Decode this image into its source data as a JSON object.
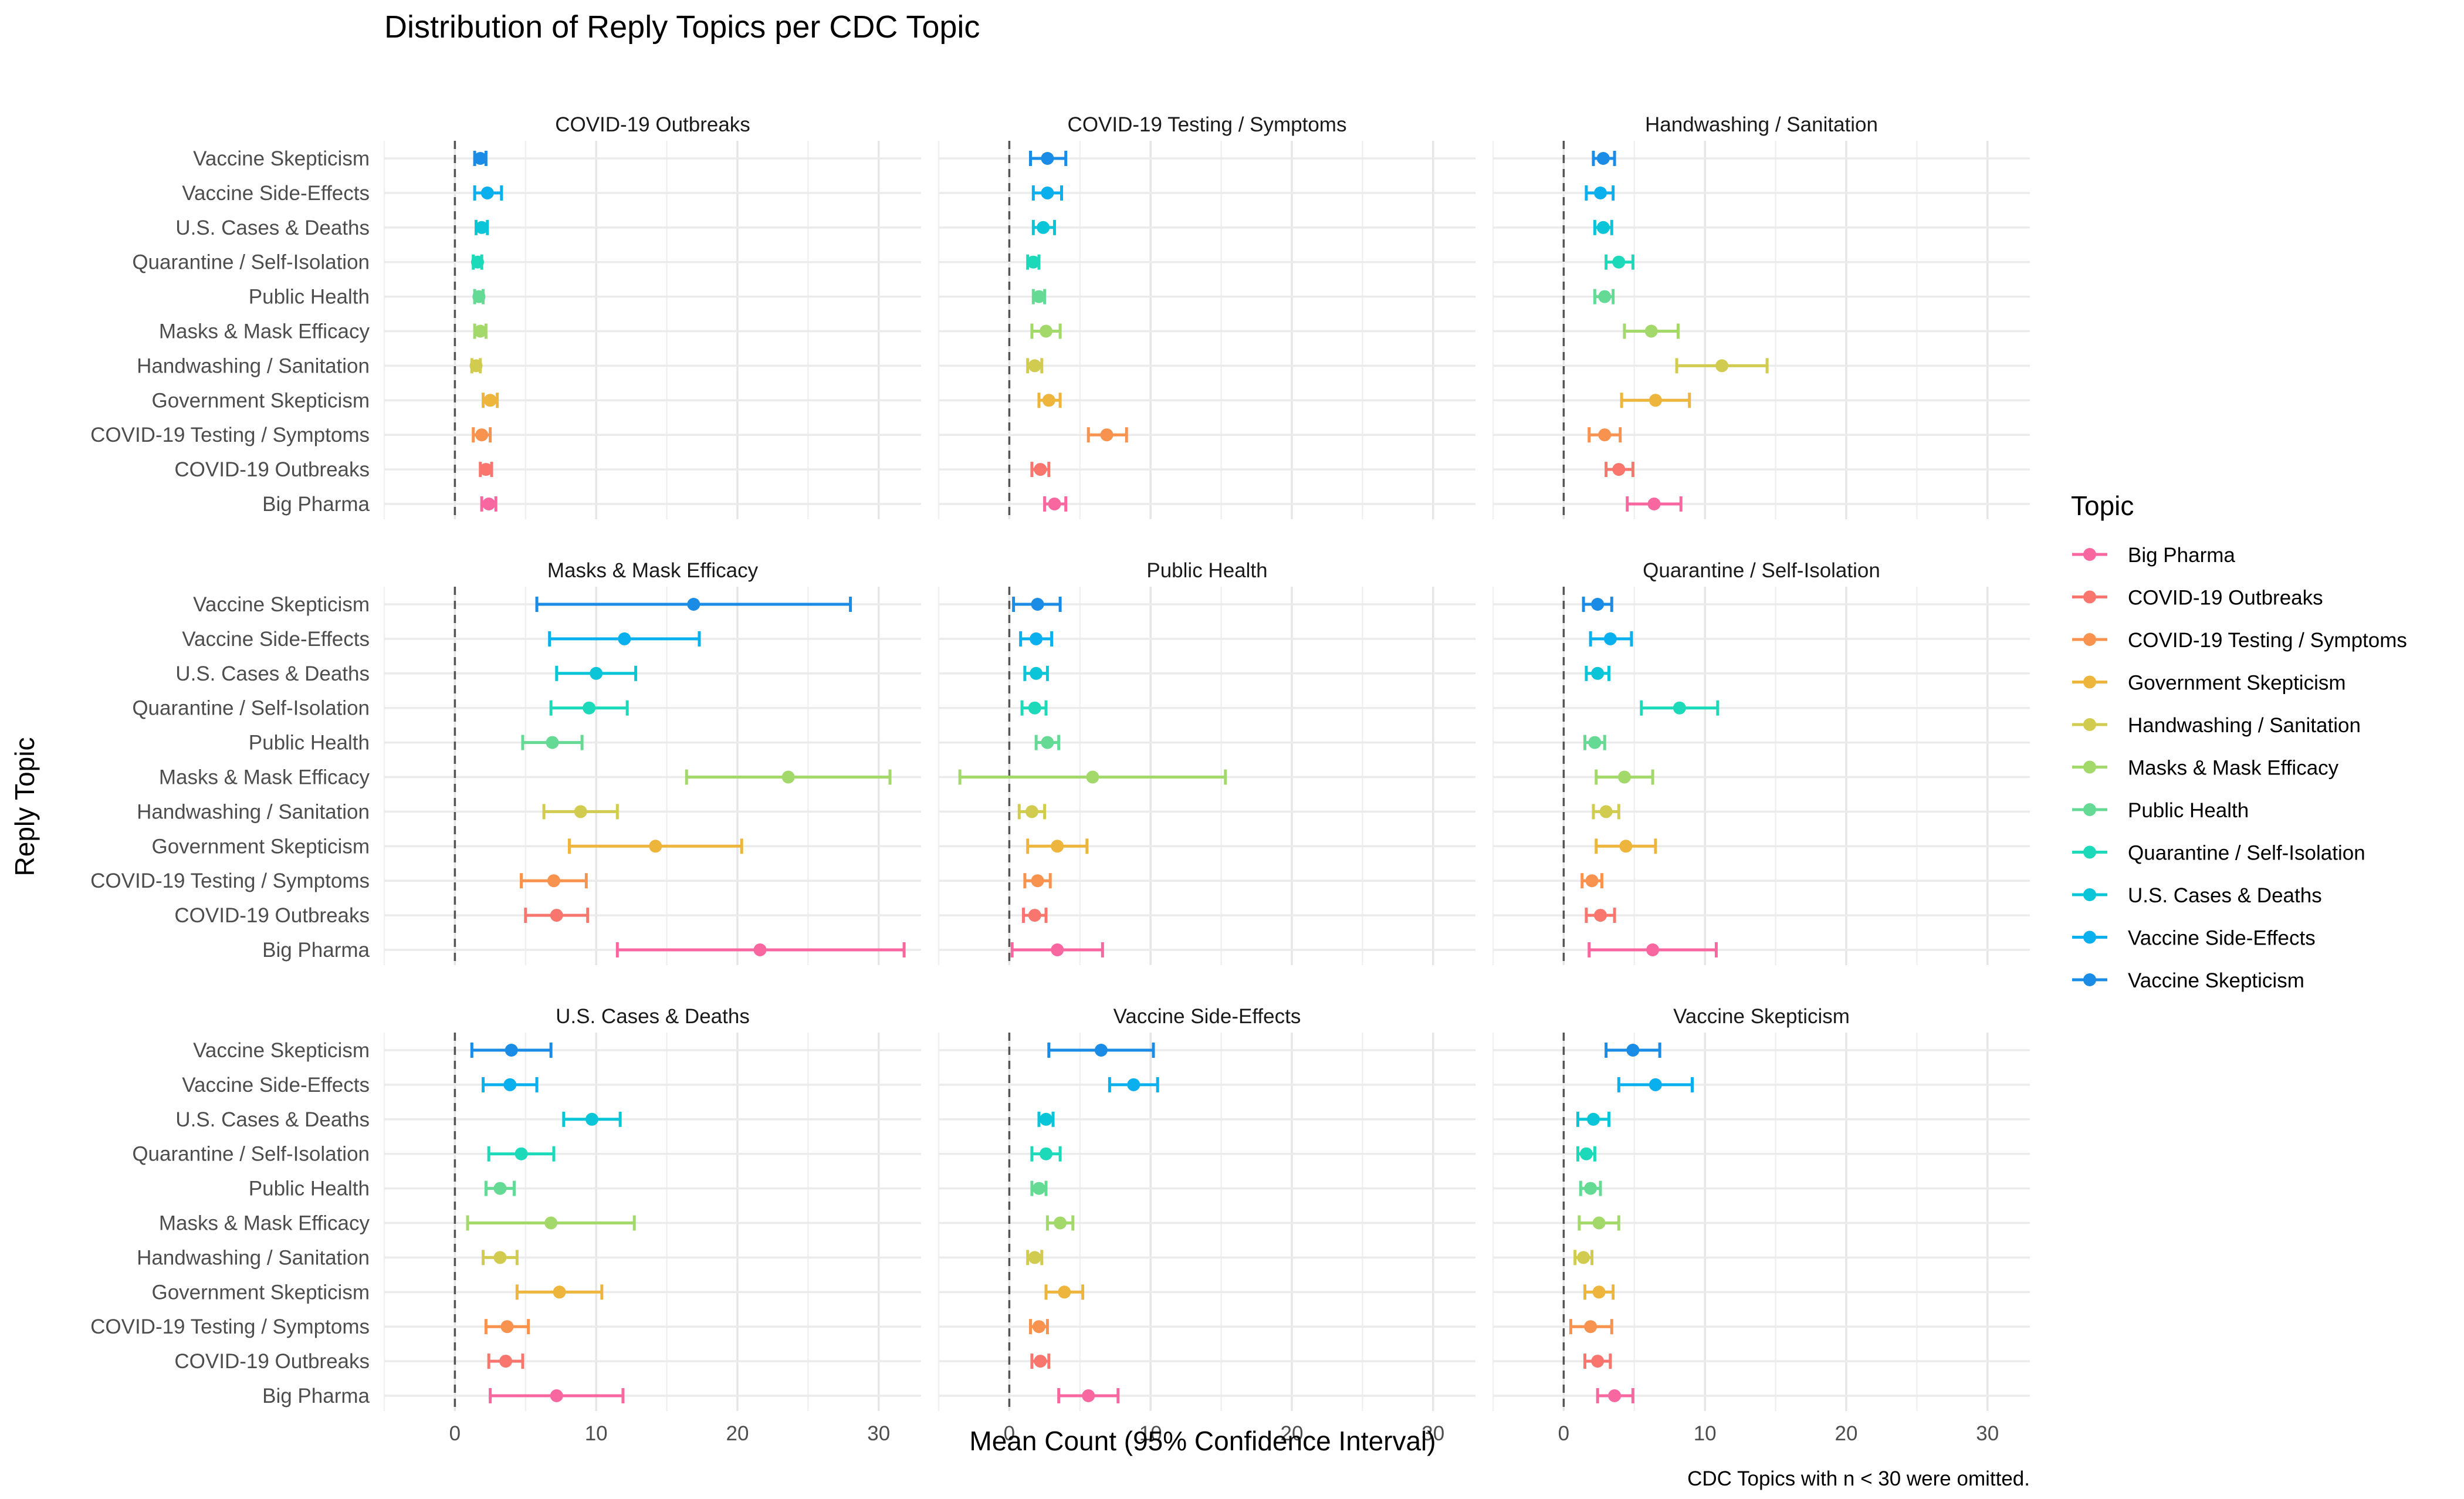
{
  "title": "Distribution of Reply Topics per CDC Topic",
  "xlabel": "Mean Count (95% Confidence Interval)",
  "ylabel": "Reply Topic",
  "caption": "CDC Topics with n < 30 were omitted.",
  "legend": {
    "title": "Topic",
    "items": [
      {
        "label": "Big Pharma",
        "color": "#F8766D"
      },
      {
        "label": "COVID-19 Outbreaks",
        "color": "#F8766D"
      },
      {
        "label": "COVID-19 Testing / Symptoms",
        "color": "#F8766D"
      },
      {
        "label": "Government Skepticism",
        "color": "#F8766D"
      },
      {
        "label": "Handwashing / Sanitation",
        "color": "#F8766D"
      },
      {
        "label": "Masks & Mask Efficacy",
        "color": "#F8766D"
      },
      {
        "label": "Public Health",
        "color": "#F8766D"
      },
      {
        "label": "Quarantine / Self-Isolation",
        "color": "#F8766D"
      },
      {
        "label": "U.S. Cases & Deaths",
        "color": "#F8766D"
      },
      {
        "label": "Vaccine Side-Effects",
        "color": "#F8766D"
      },
      {
        "label": "Vaccine Skepticism",
        "color": "#F8766D"
      }
    ]
  },
  "colors": {
    "Big Pharma": "#F8679F",
    "COVID-19 Outbreaks": "#F8766D",
    "COVID-19 Testing / Symptoms": "#F8924F",
    "Government Skepticism": "#EDB53C",
    "Handwashing / Sanitation": "#D1CB50",
    "Masks & Mask Efficacy": "#A3D96A",
    "Public Health": "#65DA94",
    "Quarantine / Self-Isolation": "#1CD9BA",
    "U.S. Cases & Deaths": "#0AC5D8",
    "Vaccine Side-Effects": "#0AAFEE",
    "Vaccine Skepticism": "#1A8CE6"
  },
  "chart_data": {
    "type": "errorbar",
    "xlim": [
      -5,
      33
    ],
    "xticks": [
      0,
      10,
      20,
      30
    ],
    "reference_line_x": 0,
    "grid": true,
    "facet_layout": [
      3,
      3
    ],
    "legend_position": "right",
    "categories": [
      "Vaccine Skepticism",
      "Vaccine Side-Effects",
      "U.S. Cases & Deaths",
      "Quarantine / Self-Isolation",
      "Public Health",
      "Masks & Mask Efficacy",
      "Handwashing / Sanitation",
      "Government Skepticism",
      "COVID-19 Testing / Symptoms",
      "COVID-19 Outbreaks",
      "Big Pharma"
    ],
    "facets": [
      {
        "title": "COVID-19 Outbreaks",
        "points": [
          {
            "topic": "Vaccine Skepticism",
            "mean": 1.8,
            "low": 1.4,
            "high": 2.2
          },
          {
            "topic": "Vaccine Side-Effects",
            "mean": 2.3,
            "low": 1.4,
            "high": 3.3
          },
          {
            "topic": "U.S. Cases & Deaths",
            "mean": 1.9,
            "low": 1.5,
            "high": 2.3
          },
          {
            "topic": "Quarantine / Self-Isolation",
            "mean": 1.6,
            "low": 1.3,
            "high": 1.9
          },
          {
            "topic": "Public Health",
            "mean": 1.7,
            "low": 1.4,
            "high": 2.0
          },
          {
            "topic": "Masks & Mask Efficacy",
            "mean": 1.8,
            "low": 1.4,
            "high": 2.2
          },
          {
            "topic": "Handwashing / Sanitation",
            "mean": 1.5,
            "low": 1.2,
            "high": 1.8
          },
          {
            "topic": "Government Skepticism",
            "mean": 2.5,
            "low": 2.0,
            "high": 3.0
          },
          {
            "topic": "COVID-19 Testing / Symptoms",
            "mean": 1.9,
            "low": 1.3,
            "high": 2.5
          },
          {
            "topic": "COVID-19 Outbreaks",
            "mean": 2.2,
            "low": 1.8,
            "high": 2.6
          },
          {
            "topic": "Big Pharma",
            "mean": 2.4,
            "low": 1.9,
            "high": 2.9
          }
        ]
      },
      {
        "title": "COVID-19 Testing / Symptoms",
        "points": [
          {
            "topic": "Vaccine Skepticism",
            "mean": 2.7,
            "low": 1.5,
            "high": 4.0
          },
          {
            "topic": "Vaccine Side-Effects",
            "mean": 2.7,
            "low": 1.7,
            "high": 3.7
          },
          {
            "topic": "U.S. Cases & Deaths",
            "mean": 2.4,
            "low": 1.7,
            "high": 3.2
          },
          {
            "topic": "Quarantine / Self-Isolation",
            "mean": 1.7,
            "low": 1.3,
            "high": 2.1
          },
          {
            "topic": "Public Health",
            "mean": 2.1,
            "low": 1.7,
            "high": 2.5
          },
          {
            "topic": "Masks & Mask Efficacy",
            "mean": 2.6,
            "low": 1.6,
            "high": 3.6
          },
          {
            "topic": "Handwashing / Sanitation",
            "mean": 1.8,
            "low": 1.3,
            "high": 2.3
          },
          {
            "topic": "Government Skepticism",
            "mean": 2.8,
            "low": 2.1,
            "high": 3.6
          },
          {
            "topic": "COVID-19 Testing / Symptoms",
            "mean": 6.9,
            "low": 5.6,
            "high": 8.3
          },
          {
            "topic": "COVID-19 Outbreaks",
            "mean": 2.2,
            "low": 1.6,
            "high": 2.8
          },
          {
            "topic": "Big Pharma",
            "mean": 3.2,
            "low": 2.5,
            "high": 4.0
          }
        ]
      },
      {
        "title": "Handwashing / Sanitation",
        "points": [
          {
            "topic": "Vaccine Skepticism",
            "mean": 2.8,
            "low": 2.1,
            "high": 3.6
          },
          {
            "topic": "Vaccine Side-Effects",
            "mean": 2.6,
            "low": 1.6,
            "high": 3.5
          },
          {
            "topic": "U.S. Cases & Deaths",
            "mean": 2.8,
            "low": 2.2,
            "high": 3.4
          },
          {
            "topic": "Quarantine / Self-Isolation",
            "mean": 3.9,
            "low": 3.0,
            "high": 4.9
          },
          {
            "topic": "Public Health",
            "mean": 2.9,
            "low": 2.2,
            "high": 3.5
          },
          {
            "topic": "Masks & Mask Efficacy",
            "mean": 6.2,
            "low": 4.3,
            "high": 8.1
          },
          {
            "topic": "Handwashing / Sanitation",
            "mean": 11.2,
            "low": 8.0,
            "high": 14.4
          },
          {
            "topic": "Government Skepticism",
            "mean": 6.5,
            "low": 4.1,
            "high": 8.9
          },
          {
            "topic": "COVID-19 Testing / Symptoms",
            "mean": 2.9,
            "low": 1.8,
            "high": 4.0
          },
          {
            "topic": "COVID-19 Outbreaks",
            "mean": 3.9,
            "low": 3.0,
            "high": 4.9
          },
          {
            "topic": "Big Pharma",
            "mean": 6.4,
            "low": 4.5,
            "high": 8.3
          }
        ]
      },
      {
        "title": "Masks & Mask Efficacy",
        "points": [
          {
            "topic": "Vaccine Skepticism",
            "mean": 16.9,
            "low": 5.8,
            "high": 28.0
          },
          {
            "topic": "Vaccine Side-Effects",
            "mean": 12.0,
            "low": 6.7,
            "high": 17.3
          },
          {
            "topic": "U.S. Cases & Deaths",
            "mean": 10.0,
            "low": 7.2,
            "high": 12.8
          },
          {
            "topic": "Quarantine / Self-Isolation",
            "mean": 9.5,
            "low": 6.8,
            "high": 12.2
          },
          {
            "topic": "Public Health",
            "mean": 6.9,
            "low": 4.8,
            "high": 9.0
          },
          {
            "topic": "Masks & Mask Efficacy",
            "mean": 23.6,
            "low": 16.4,
            "high": 30.8
          },
          {
            "topic": "Handwashing / Sanitation",
            "mean": 8.9,
            "low": 6.3,
            "high": 11.5
          },
          {
            "topic": "Government Skepticism",
            "mean": 14.2,
            "low": 8.1,
            "high": 20.3
          },
          {
            "topic": "COVID-19 Testing / Symptoms",
            "mean": 7.0,
            "low": 4.7,
            "high": 9.3
          },
          {
            "topic": "COVID-19 Outbreaks",
            "mean": 7.2,
            "low": 5.0,
            "high": 9.4
          },
          {
            "topic": "Big Pharma",
            "mean": 21.6,
            "low": 11.5,
            "high": 31.8
          }
        ]
      },
      {
        "title": "Public Health",
        "points": [
          {
            "topic": "Vaccine Skepticism",
            "mean": 2.0,
            "low": 0.3,
            "high": 3.6
          },
          {
            "topic": "Vaccine Side-Effects",
            "mean": 1.9,
            "low": 0.8,
            "high": 3.0
          },
          {
            "topic": "U.S. Cases & Deaths",
            "mean": 1.9,
            "low": 1.1,
            "high": 2.7
          },
          {
            "topic": "Quarantine / Self-Isolation",
            "mean": 1.8,
            "low": 0.9,
            "high": 2.6
          },
          {
            "topic": "Public Health",
            "mean": 2.7,
            "low": 1.9,
            "high": 3.5
          },
          {
            "topic": "Masks & Mask Efficacy",
            "mean": 5.9,
            "low": -3.5,
            "high": 15.3
          },
          {
            "topic": "Handwashing / Sanitation",
            "mean": 1.6,
            "low": 0.7,
            "high": 2.5
          },
          {
            "topic": "Government Skepticism",
            "mean": 3.4,
            "low": 1.3,
            "high": 5.5
          },
          {
            "topic": "COVID-19 Testing / Symptoms",
            "mean": 2.0,
            "low": 1.1,
            "high": 2.9
          },
          {
            "topic": "COVID-19 Outbreaks",
            "mean": 1.8,
            "low": 1.0,
            "high": 2.6
          },
          {
            "topic": "Big Pharma",
            "mean": 3.4,
            "low": 0.2,
            "high": 6.6
          }
        ]
      },
      {
        "title": "Quarantine / Self-Isolation",
        "points": [
          {
            "topic": "Vaccine Skepticism",
            "mean": 2.4,
            "low": 1.4,
            "high": 3.4
          },
          {
            "topic": "Vaccine Side-Effects",
            "mean": 3.3,
            "low": 1.9,
            "high": 4.8
          },
          {
            "topic": "U.S. Cases & Deaths",
            "mean": 2.4,
            "low": 1.6,
            "high": 3.2
          },
          {
            "topic": "Quarantine / Self-Isolation",
            "mean": 8.2,
            "low": 5.5,
            "high": 10.9
          },
          {
            "topic": "Public Health",
            "mean": 2.2,
            "low": 1.5,
            "high": 2.9
          },
          {
            "topic": "Masks & Mask Efficacy",
            "mean": 4.3,
            "low": 2.3,
            "high": 6.3
          },
          {
            "topic": "Handwashing / Sanitation",
            "mean": 3.0,
            "low": 2.1,
            "high": 3.9
          },
          {
            "topic": "Government Skepticism",
            "mean": 4.4,
            "low": 2.3,
            "high": 6.5
          },
          {
            "topic": "COVID-19 Testing / Symptoms",
            "mean": 2.0,
            "low": 1.3,
            "high": 2.7
          },
          {
            "topic": "COVID-19 Outbreaks",
            "mean": 2.6,
            "low": 1.6,
            "high": 3.6
          },
          {
            "topic": "Big Pharma",
            "mean": 6.3,
            "low": 1.8,
            "high": 10.8
          }
        ]
      },
      {
        "title": "U.S. Cases & Deaths",
        "points": [
          {
            "topic": "Vaccine Skepticism",
            "mean": 4.0,
            "low": 1.2,
            "high": 6.8
          },
          {
            "topic": "Vaccine Side-Effects",
            "mean": 3.9,
            "low": 2.0,
            "high": 5.8
          },
          {
            "topic": "U.S. Cases & Deaths",
            "mean": 9.7,
            "low": 7.7,
            "high": 11.7
          },
          {
            "topic": "Quarantine / Self-Isolation",
            "mean": 4.7,
            "low": 2.4,
            "high": 7.0
          },
          {
            "topic": "Public Health",
            "mean": 3.2,
            "low": 2.2,
            "high": 4.2
          },
          {
            "topic": "Masks & Mask Efficacy",
            "mean": 6.8,
            "low": 0.9,
            "high": 12.7
          },
          {
            "topic": "Handwashing / Sanitation",
            "mean": 3.2,
            "low": 2.0,
            "high": 4.4
          },
          {
            "topic": "Government Skepticism",
            "mean": 7.4,
            "low": 4.4,
            "high": 10.4
          },
          {
            "topic": "COVID-19 Testing / Symptoms",
            "mean": 3.7,
            "low": 2.2,
            "high": 5.2
          },
          {
            "topic": "COVID-19 Outbreaks",
            "mean": 3.6,
            "low": 2.4,
            "high": 4.8
          },
          {
            "topic": "Big Pharma",
            "mean": 7.2,
            "low": 2.5,
            "high": 11.9
          }
        ]
      },
      {
        "title": "Vaccine Side-Effects",
        "points": [
          {
            "topic": "Vaccine Skepticism",
            "mean": 6.5,
            "low": 2.8,
            "high": 10.2
          },
          {
            "topic": "Vaccine Side-Effects",
            "mean": 8.8,
            "low": 7.1,
            "high": 10.5
          },
          {
            "topic": "U.S. Cases & Deaths",
            "mean": 2.6,
            "low": 2.1,
            "high": 3.1
          },
          {
            "topic": "Quarantine / Self-Isolation",
            "mean": 2.6,
            "low": 1.6,
            "high": 3.6
          },
          {
            "topic": "Public Health",
            "mean": 2.1,
            "low": 1.6,
            "high": 2.6
          },
          {
            "topic": "Masks & Mask Efficacy",
            "mean": 3.6,
            "low": 2.7,
            "high": 4.5
          },
          {
            "topic": "Handwashing / Sanitation",
            "mean": 1.8,
            "low": 1.3,
            "high": 2.3
          },
          {
            "topic": "Government Skepticism",
            "mean": 3.9,
            "low": 2.6,
            "high": 5.2
          },
          {
            "topic": "COVID-19 Testing / Symptoms",
            "mean": 2.1,
            "low": 1.5,
            "high": 2.7
          },
          {
            "topic": "COVID-19 Outbreaks",
            "mean": 2.2,
            "low": 1.6,
            "high": 2.8
          },
          {
            "topic": "Big Pharma",
            "mean": 5.6,
            "low": 3.5,
            "high": 7.7
          }
        ]
      },
      {
        "title": "Vaccine Skepticism",
        "points": [
          {
            "topic": "Vaccine Skepticism",
            "mean": 4.9,
            "low": 3.0,
            "high": 6.8
          },
          {
            "topic": "Vaccine Side-Effects",
            "mean": 6.5,
            "low": 3.9,
            "high": 9.1
          },
          {
            "topic": "U.S. Cases & Deaths",
            "mean": 2.1,
            "low": 1.0,
            "high": 3.2
          },
          {
            "topic": "Quarantine / Self-Isolation",
            "mean": 1.6,
            "low": 1.0,
            "high": 2.2
          },
          {
            "topic": "Public Health",
            "mean": 1.9,
            "low": 1.2,
            "high": 2.6
          },
          {
            "topic": "Masks & Mask Efficacy",
            "mean": 2.5,
            "low": 1.1,
            "high": 3.9
          },
          {
            "topic": "Handwashing / Sanitation",
            "mean": 1.4,
            "low": 0.8,
            "high": 2.0
          },
          {
            "topic": "Government Skepticism",
            "mean": 2.5,
            "low": 1.5,
            "high": 3.5
          },
          {
            "topic": "COVID-19 Testing / Symptoms",
            "mean": 1.9,
            "low": 0.5,
            "high": 3.4
          },
          {
            "topic": "COVID-19 Outbreaks",
            "mean": 2.4,
            "low": 1.5,
            "high": 3.3
          },
          {
            "topic": "Big Pharma",
            "mean": 3.6,
            "low": 2.4,
            "high": 4.9
          }
        ]
      }
    ]
  }
}
